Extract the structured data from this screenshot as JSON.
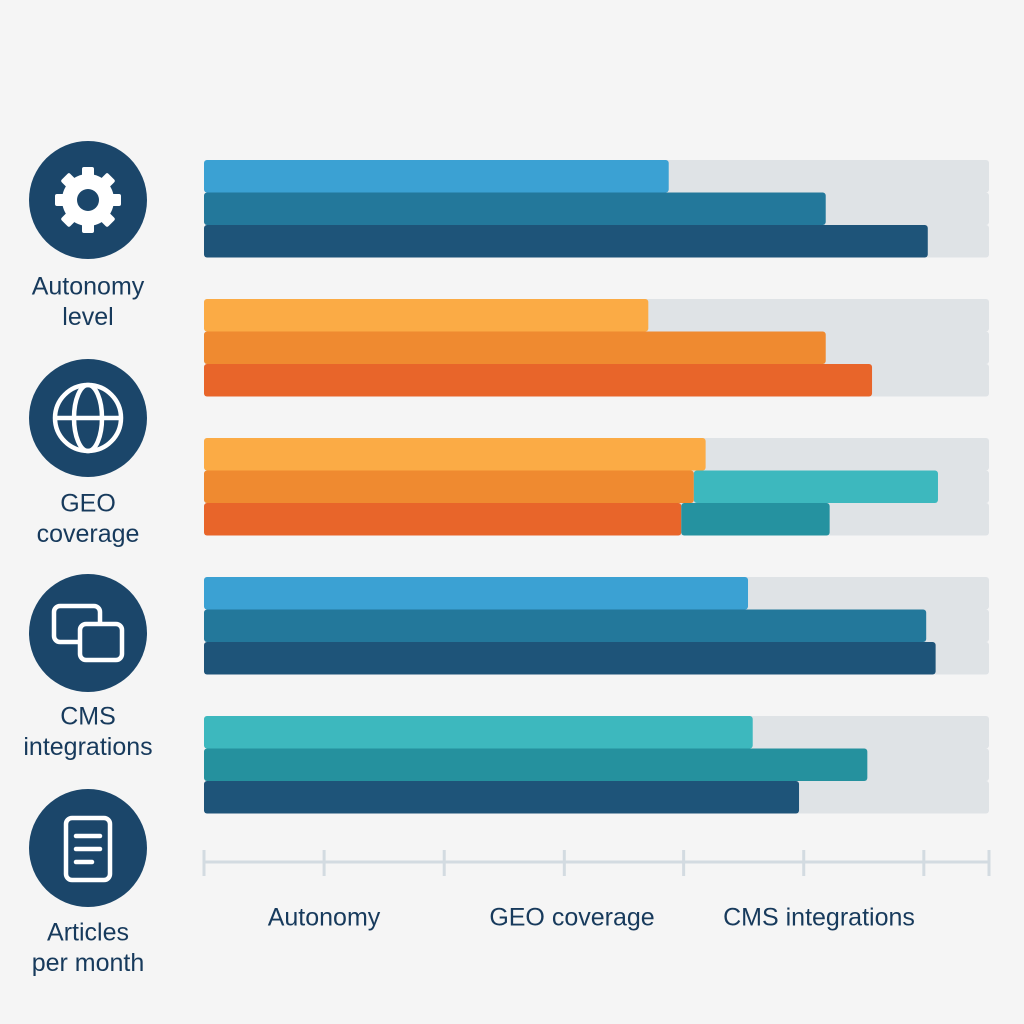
{
  "chart_data": {
    "type": "bar",
    "orientation": "horizontal",
    "xlim": [
      0,
      100
    ],
    "xticks": [
      0,
      15.3,
      30.6,
      45.9,
      61.1,
      76.4,
      91.7,
      100
    ],
    "track_color": "#dfe3e6",
    "groups": [
      {
        "bars": [
          {
            "segments": [
              {
                "value": 59.2,
                "color": "#3ba1d3"
              }
            ]
          },
          {
            "segments": [
              {
                "value": 79.2,
                "color": "#23789b"
              }
            ]
          },
          {
            "segments": [
              {
                "value": 92.2,
                "color": "#1e5479"
              }
            ]
          }
        ]
      },
      {
        "bars": [
          {
            "segments": [
              {
                "value": 56.6,
                "color": "#fbab45"
              }
            ]
          },
          {
            "segments": [
              {
                "value": 79.2,
                "color": "#ef8a30"
              }
            ]
          },
          {
            "segments": [
              {
                "value": 85.1,
                "color": "#e8652a"
              }
            ]
          }
        ]
      },
      {
        "bars": [
          {
            "segments": [
              {
                "value": 63.9,
                "color": "#fbab45"
              }
            ]
          },
          {
            "segments": [
              {
                "value": 62.4,
                "color": "#ef8a30"
              },
              {
                "value": 31.1,
                "color": "#3db8be"
              }
            ]
          },
          {
            "segments": [
              {
                "value": 60.8,
                "color": "#e8652a"
              },
              {
                "value": 18.9,
                "color": "#2592a0"
              }
            ]
          }
        ]
      },
      {
        "bars": [
          {
            "segments": [
              {
                "value": 69.3,
                "color": "#3ba1d3"
              }
            ]
          },
          {
            "segments": [
              {
                "value": 92.0,
                "color": "#23789b"
              }
            ]
          },
          {
            "segments": [
              {
                "value": 93.2,
                "color": "#1e5479"
              }
            ]
          }
        ]
      },
      {
        "bars": [
          {
            "segments": [
              {
                "value": 69.9,
                "color": "#3db8be"
              }
            ]
          },
          {
            "segments": [
              {
                "value": 84.5,
                "color": "#25919e"
              }
            ]
          },
          {
            "segments": [
              {
                "value": 75.8,
                "color": "#1e5479"
              }
            ]
          }
        ]
      }
    ],
    "row_labels": [
      [
        "Autonomy",
        "level"
      ],
      [
        "GEO",
        "coverage"
      ],
      [
        "CMS",
        "integrations"
      ],
      [
        "Articles",
        "per month"
      ]
    ],
    "axis_labels": [
      "Autonomy",
      "GEO coverage",
      "CMS integrations"
    ]
  }
}
